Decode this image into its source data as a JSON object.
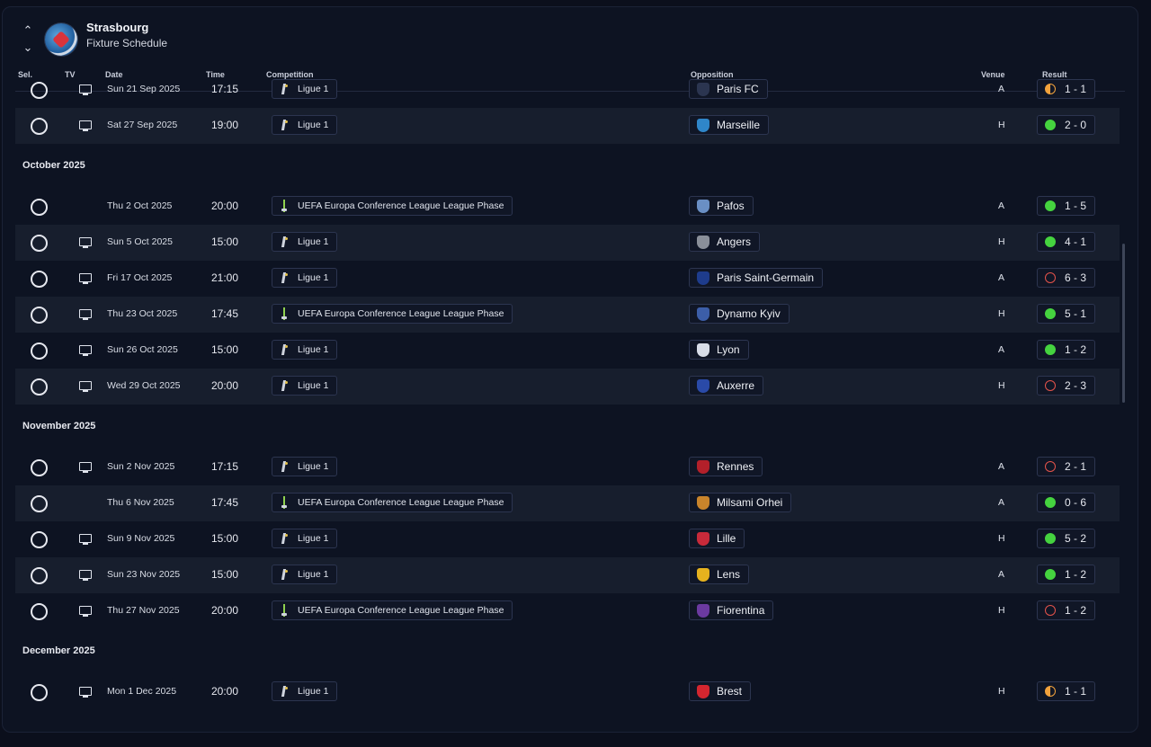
{
  "header": {
    "club_name": "Strasbourg",
    "subtitle": "Fixture Schedule",
    "columns": {
      "sel": "Sel.",
      "tv": "TV",
      "date": "Date",
      "time": "Time",
      "competition": "Competition",
      "opposition": "Opposition",
      "venue": "Venue",
      "result": "Result"
    }
  },
  "rows": [
    {
      "type": "match",
      "date": "Sun 21 Sep 2025",
      "time": "17:15",
      "tv": true,
      "comp": "Ligue 1",
      "comp_icon": "ligue1-logo",
      "opp": "Paris FC",
      "opp_color": "#2b3550",
      "venue": "A",
      "score": "1 - 1",
      "result": "draw"
    },
    {
      "type": "match",
      "date": "Sat 27 Sep 2025",
      "time": "19:00",
      "tv": true,
      "comp": "Ligue 1",
      "comp_icon": "ligue1-logo",
      "opp": "Marseille",
      "opp_color": "#2f86c9",
      "venue": "H",
      "score": "2 - 0",
      "result": "win"
    },
    {
      "type": "month",
      "label": "October 2025"
    },
    {
      "type": "match",
      "date": "Thu 2 Oct 2025",
      "time": "20:00",
      "tv": false,
      "comp": "UEFA Europa Conference League League Phase",
      "comp_icon": "uecl-logo",
      "opp": "Pafos",
      "opp_color": "#6a8fc4",
      "venue": "A",
      "score": "1 - 5",
      "result": "win"
    },
    {
      "type": "match",
      "date": "Sun 5 Oct 2025",
      "time": "15:00",
      "tv": true,
      "comp": "Ligue 1",
      "comp_icon": "ligue1-logo",
      "opp": "Angers",
      "opp_color": "#8a8f99",
      "venue": "H",
      "score": "4 - 1",
      "result": "win"
    },
    {
      "type": "match",
      "date": "Fri 17 Oct 2025",
      "time": "21:00",
      "tv": true,
      "comp": "Ligue 1",
      "comp_icon": "ligue1-logo",
      "opp": "Paris Saint-Germain",
      "opp_color": "#1e3c8c",
      "venue": "A",
      "score": "6 - 3",
      "result": "loss"
    },
    {
      "type": "match",
      "date": "Thu 23 Oct 2025",
      "time": "17:45",
      "tv": true,
      "comp": "UEFA Europa Conference League League Phase",
      "comp_icon": "uecl-logo",
      "opp": "Dynamo Kyiv",
      "opp_color": "#3c5ea8",
      "venue": "H",
      "score": "5 - 1",
      "result": "win"
    },
    {
      "type": "match",
      "date": "Sun 26 Oct 2025",
      "time": "15:00",
      "tv": true,
      "comp": "Ligue 1",
      "comp_icon": "ligue1-logo",
      "opp": "Lyon",
      "opp_color": "#d8dde8",
      "venue": "A",
      "score": "1 - 2",
      "result": "win"
    },
    {
      "type": "match",
      "date": "Wed 29 Oct 2025",
      "time": "20:00",
      "tv": true,
      "comp": "Ligue 1",
      "comp_icon": "ligue1-logo",
      "opp": "Auxerre",
      "opp_color": "#2a4aa8",
      "venue": "H",
      "score": "2 - 3",
      "result": "loss"
    },
    {
      "type": "month",
      "label": "November 2025"
    },
    {
      "type": "match",
      "date": "Sun 2 Nov 2025",
      "time": "17:15",
      "tv": true,
      "comp": "Ligue 1",
      "comp_icon": "ligue1-logo",
      "opp": "Rennes",
      "opp_color": "#b3202a",
      "venue": "A",
      "score": "2 - 1",
      "result": "loss"
    },
    {
      "type": "match",
      "date": "Thu 6 Nov 2025",
      "time": "17:45",
      "tv": false,
      "comp": "UEFA Europa Conference League League Phase",
      "comp_icon": "uecl-logo",
      "opp": "Milsami Orhei",
      "opp_color": "#c9842b",
      "venue": "A",
      "score": "0 - 6",
      "result": "win"
    },
    {
      "type": "match",
      "date": "Sun 9 Nov 2025",
      "time": "15:00",
      "tv": true,
      "comp": "Ligue 1",
      "comp_icon": "ligue1-logo",
      "opp": "Lille",
      "opp_color": "#c82a3a",
      "venue": "H",
      "score": "5 - 2",
      "result": "win"
    },
    {
      "type": "match",
      "date": "Sun 23 Nov 2025",
      "time": "15:00",
      "tv": true,
      "comp": "Ligue 1",
      "comp_icon": "ligue1-logo",
      "opp": "Lens",
      "opp_color": "#e6b21e",
      "venue": "A",
      "score": "1 - 2",
      "result": "win"
    },
    {
      "type": "match",
      "date": "Thu 27 Nov 2025",
      "time": "20:00",
      "tv": true,
      "comp": "UEFA Europa Conference League League Phase",
      "comp_icon": "uecl-logo",
      "opp": "Fiorentina",
      "opp_color": "#6b3aa0",
      "venue": "H",
      "score": "1 - 2",
      "result": "loss"
    },
    {
      "type": "month",
      "label": "December 2025"
    },
    {
      "type": "match",
      "date": "Mon 1 Dec 2025",
      "time": "20:00",
      "tv": true,
      "comp": "Ligue 1",
      "comp_icon": "ligue1-logo",
      "opp": "Brest",
      "opp_color": "#d4262f",
      "venue": "H",
      "score": "1 - 1",
      "result": "draw"
    }
  ],
  "colors": {
    "win": "#45d33f",
    "loss": "#e5534b",
    "draw": "#f2a23c",
    "panel": "#0d1322",
    "row_alt": "#171e2d"
  }
}
